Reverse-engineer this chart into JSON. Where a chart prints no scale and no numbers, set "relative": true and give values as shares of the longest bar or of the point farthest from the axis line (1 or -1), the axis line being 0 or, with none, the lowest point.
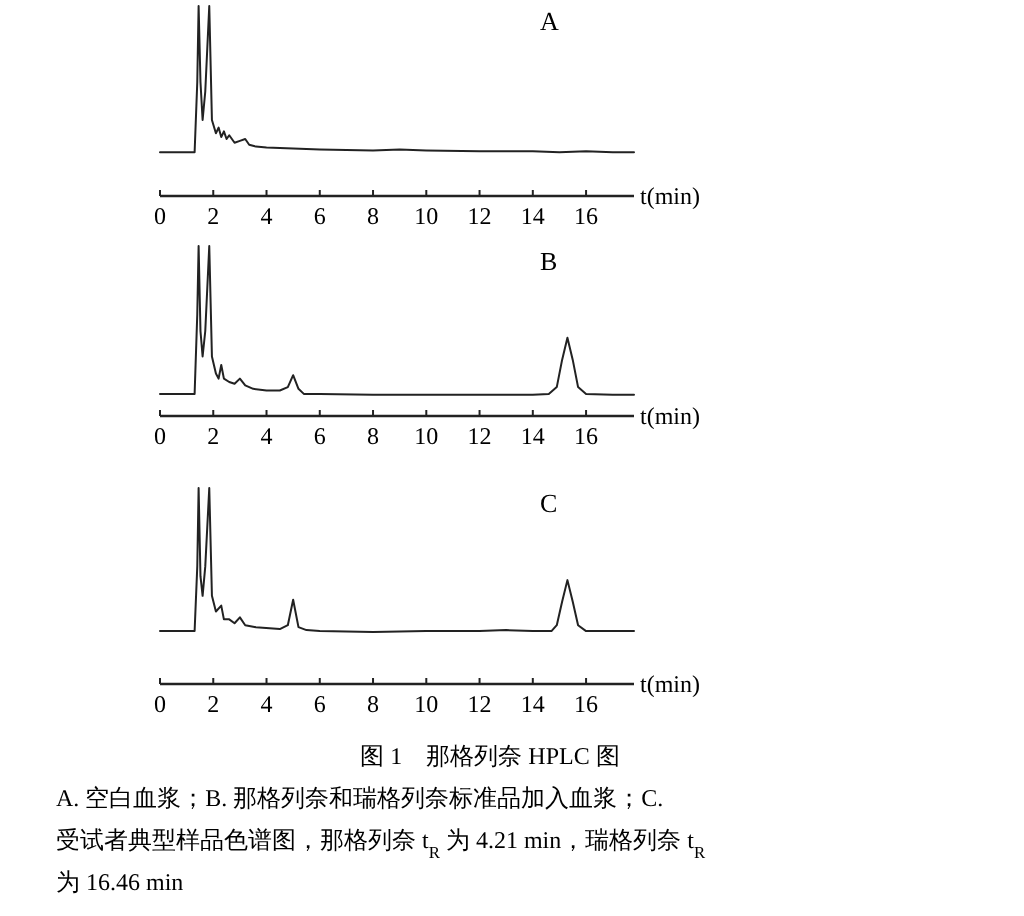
{
  "chart_data": [
    {
      "type": "line",
      "relative": true,
      "xlabel": "t(min)",
      "xlim": [
        0,
        17.8
      ],
      "xticks": [
        0,
        2,
        4,
        6,
        8,
        10,
        12,
        14,
        16
      ],
      "annotations": [
        "A"
      ],
      "series": [
        {
          "color": "#222222",
          "x": [
            0,
            1.3,
            1.4,
            1.45,
            1.52,
            1.6,
            1.7,
            1.85,
            1.95,
            2.1,
            2.2,
            2.3,
            2.4,
            2.5,
            2.6,
            2.8,
            3.0,
            3.2,
            3.35,
            3.6,
            4,
            5,
            6,
            8,
            9,
            10,
            12,
            14,
            15,
            16,
            17,
            17.8
          ],
          "values": [
            0.23,
            0.23,
            0.6,
            1,
            0.6,
            0.4,
            0.55,
            1,
            0.4,
            0.33,
            0.36,
            0.31,
            0.34,
            0.3,
            0.32,
            0.28,
            0.29,
            0.3,
            0.27,
            0.26,
            0.255,
            0.25,
            0.245,
            0.24,
            0.245,
            0.24,
            0.235,
            0.235,
            0.23,
            0.235,
            0.23,
            0.23
          ]
        }
      ]
    },
    {
      "type": "line",
      "relative": true,
      "xlabel": "t(min)",
      "xlim": [
        0,
        17.8
      ],
      "xticks": [
        0,
        2,
        4,
        6,
        8,
        10,
        12,
        14,
        16
      ],
      "annotations": [
        "B"
      ],
      "series": [
        {
          "color": "#222222",
          "x": [
            0,
            1.3,
            1.4,
            1.45,
            1.52,
            1.6,
            1.7,
            1.85,
            1.95,
            2.1,
            2.2,
            2.3,
            2.4,
            2.6,
            2.8,
            3.0,
            3.2,
            3.5,
            4,
            4.5,
            4.8,
            5.0,
            5.2,
            5.4,
            6,
            8,
            10,
            12,
            14,
            14.6,
            14.9,
            15.1,
            15.3,
            15.5,
            15.7,
            16,
            17,
            17.8
          ],
          "values": [
            0.13,
            0.13,
            0.6,
            1,
            0.5,
            0.35,
            0.5,
            1,
            0.35,
            0.25,
            0.22,
            0.3,
            0.22,
            0.2,
            0.19,
            0.22,
            0.18,
            0.16,
            0.15,
            0.15,
            0.17,
            0.24,
            0.16,
            0.13,
            0.13,
            0.125,
            0.125,
            0.125,
            0.125,
            0.13,
            0.17,
            0.33,
            0.46,
            0.33,
            0.17,
            0.13,
            0.125,
            0.125
          ]
        }
      ]
    },
    {
      "type": "line",
      "relative": true,
      "xlabel": "t(min)",
      "xlim": [
        0,
        17.8
      ],
      "xticks": [
        0,
        2,
        4,
        6,
        8,
        10,
        12,
        14,
        16
      ],
      "annotations": [
        "C",
        "图 1　那格列奈 HPLC 图",
        "A. 空白血浆；B. 那格列奈和瑞格列奈标准品加入血浆；C.",
        "受试者典型样品色谱图，那格列奈 t$_{R}$ 为 4.21 min，瑞格列奈 t$_{R}$",
        "为 16.46 min"
      ],
      "series": [
        {
          "color": "#222222",
          "x": [
            0,
            1.3,
            1.4,
            1.45,
            1.52,
            1.6,
            1.7,
            1.85,
            1.95,
            2.1,
            2.3,
            2.4,
            2.6,
            2.8,
            3.0,
            3.2,
            3.6,
            4.5,
            4.8,
            5.0,
            5.2,
            5.5,
            6,
            8,
            10,
            12,
            13,
            14,
            14.7,
            14.9,
            15.1,
            15.3,
            15.5,
            15.7,
            16,
            17,
            17.8
          ],
          "values": [
            0.27,
            0.27,
            0.6,
            1,
            0.55,
            0.45,
            0.6,
            1,
            0.45,
            0.37,
            0.4,
            0.33,
            0.33,
            0.31,
            0.34,
            0.3,
            0.29,
            0.28,
            0.3,
            0.43,
            0.29,
            0.275,
            0.27,
            0.265,
            0.27,
            0.27,
            0.275,
            0.27,
            0.27,
            0.3,
            0.42,
            0.53,
            0.42,
            0.3,
            0.27,
            0.27,
            0.27
          ]
        }
      ]
    }
  ]
}
